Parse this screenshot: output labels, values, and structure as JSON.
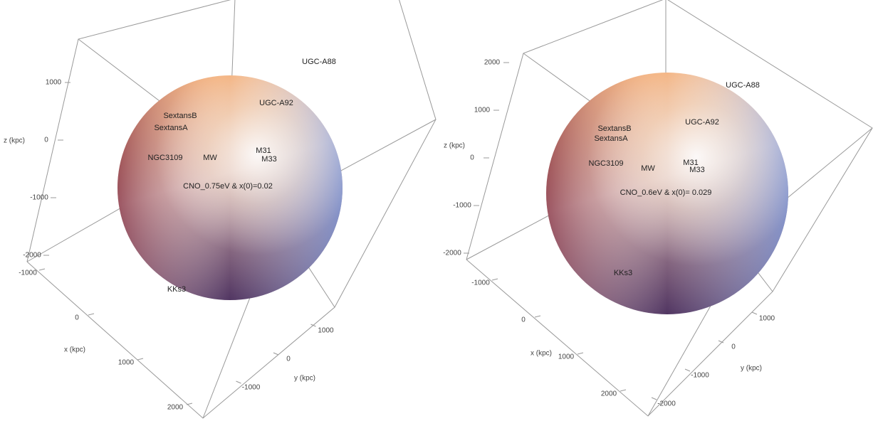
{
  "chart_data": [
    {
      "type": "sphere3d",
      "annotation": "CNO_0.75eV & x(0)=0.02",
      "xlabel": "x (kpc)",
      "ylabel": "y (kpc)",
      "zlabel": "z (kpc)",
      "xticks": [
        -1000,
        0,
        1000,
        2000
      ],
      "yticks": [
        -1000,
        0,
        1000
      ],
      "zticks": [
        -2000,
        -1000,
        0,
        1000
      ],
      "labels": [
        "UGC-A88",
        "UGC-A92",
        "SextansB",
        "SextansA",
        "NGC3109",
        "MW",
        "M31",
        "M33",
        "KKs3"
      ]
    },
    {
      "type": "sphere3d",
      "annotation": "CNO_0.6eV & x(0)= 0.029",
      "xlabel": "x (kpc)",
      "ylabel": "y (kpc)",
      "zlabel": "z (kpc)",
      "xticks": [
        -1000,
        0,
        1000,
        2000
      ],
      "yticks": [
        -2000,
        -1000,
        0,
        1000
      ],
      "zticks": [
        -2000,
        -1000,
        0,
        1000,
        2000
      ],
      "labels": [
        "UGC-A88",
        "UGC-A92",
        "SextansB",
        "SextansA",
        "NGC3109",
        "MW",
        "M31",
        "M33",
        "KKs3"
      ]
    }
  ]
}
